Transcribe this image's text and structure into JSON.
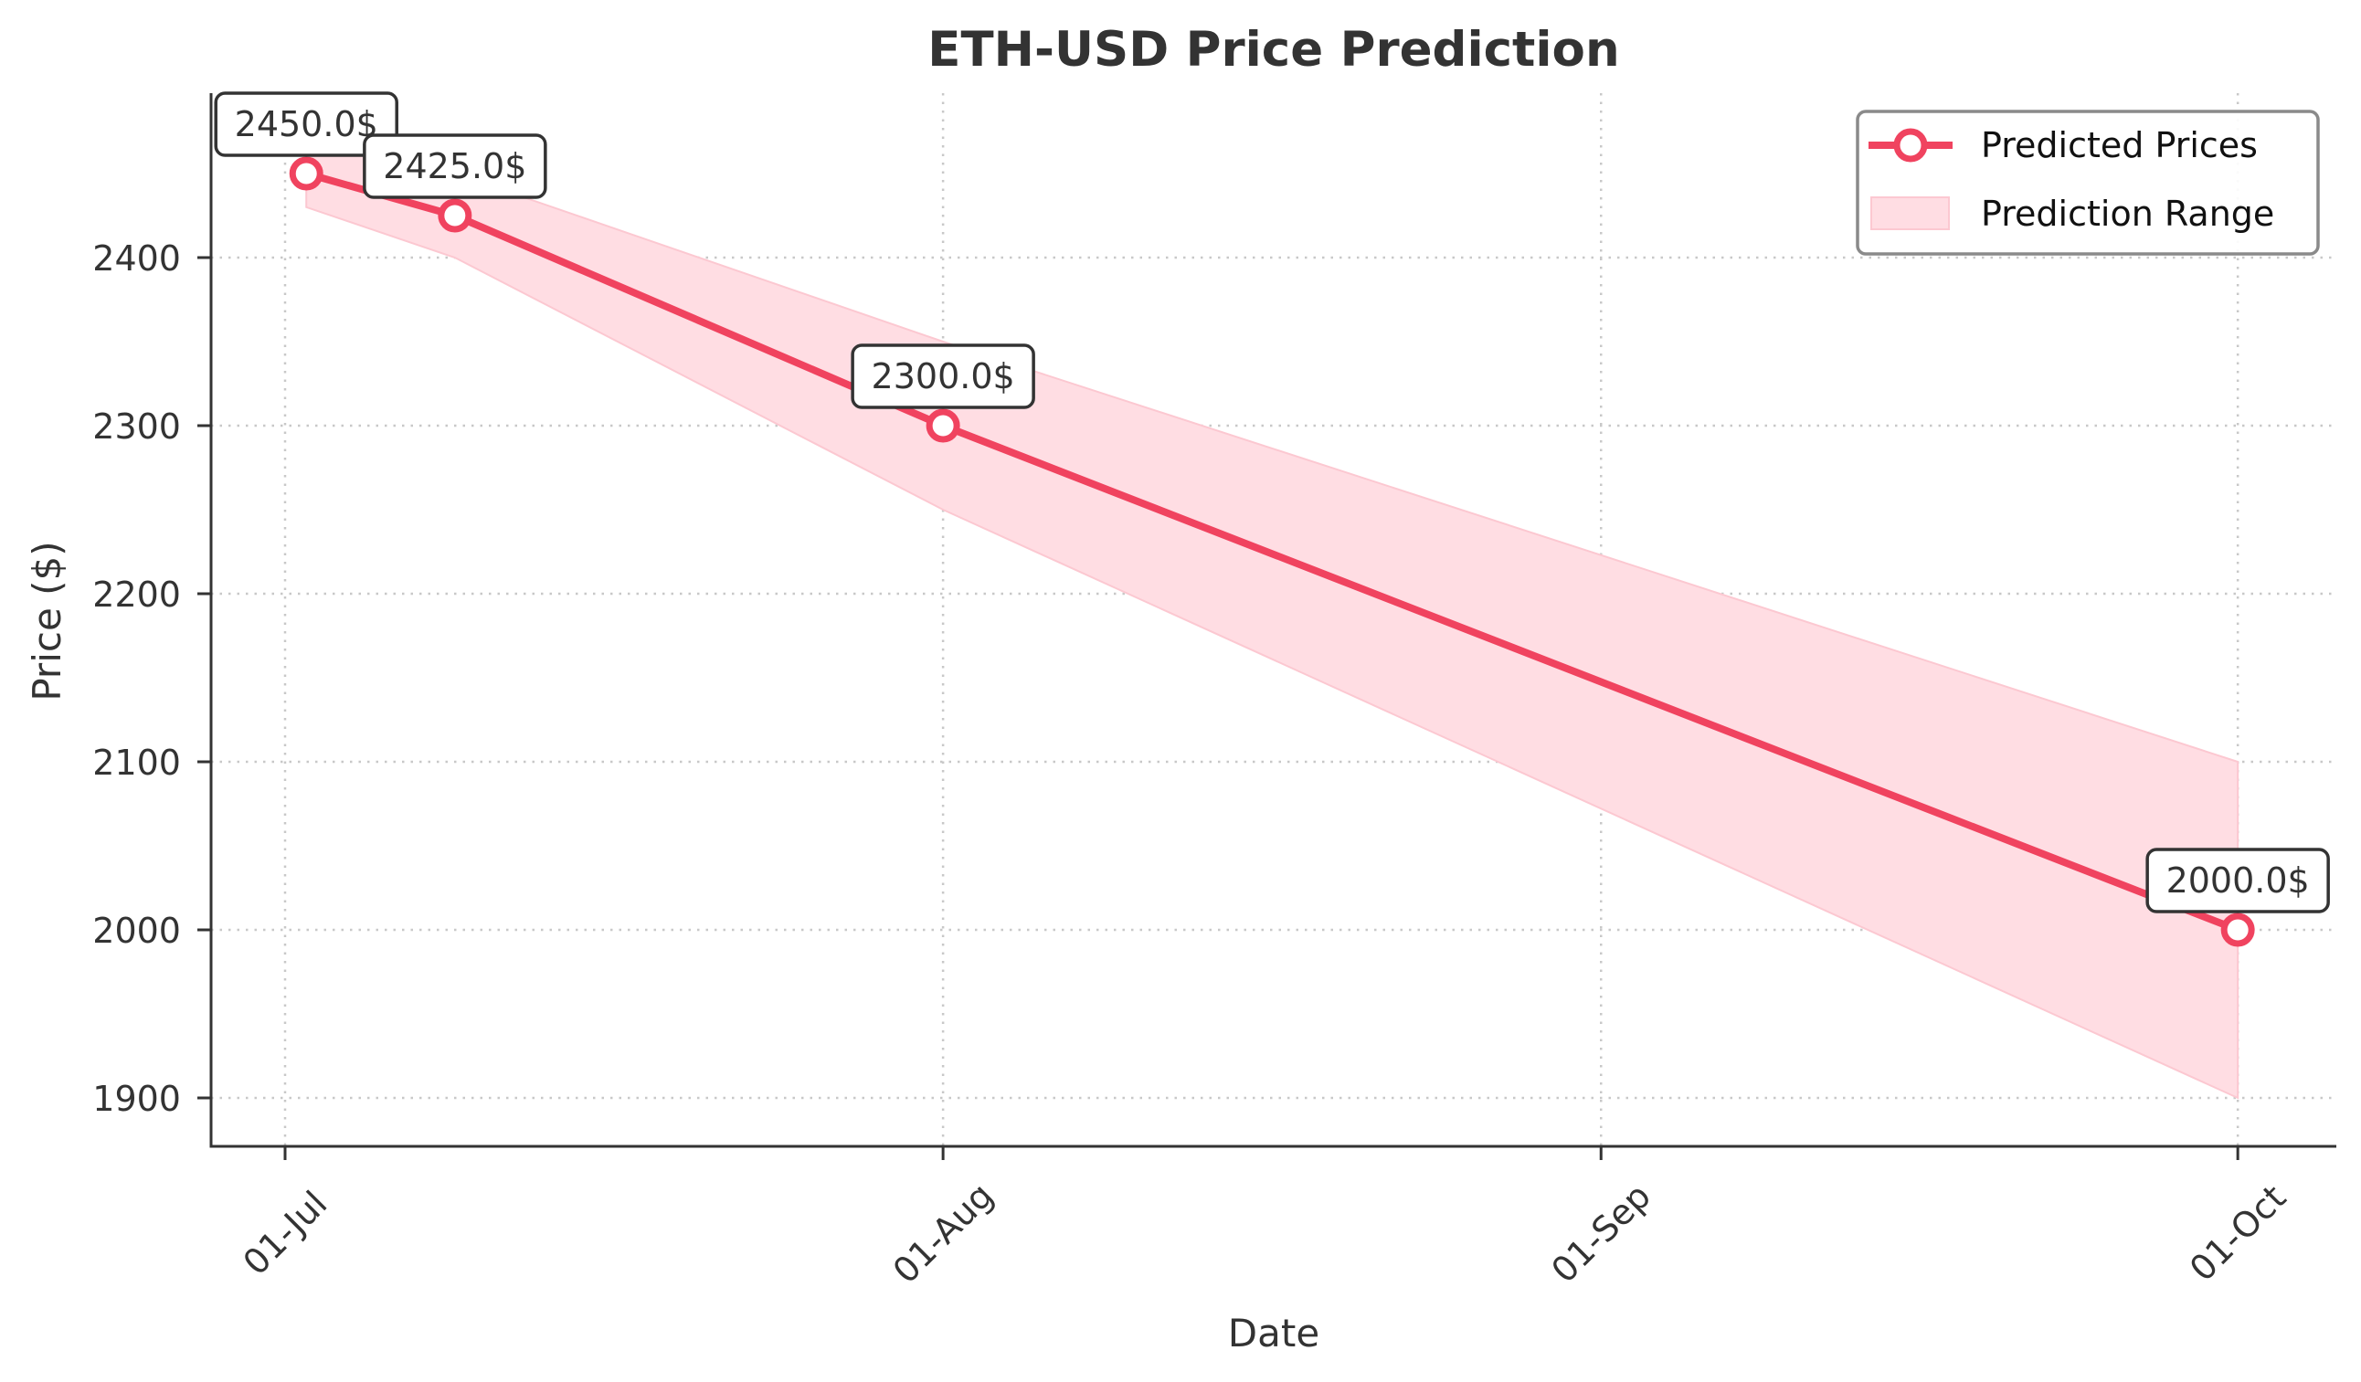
{
  "chart_data": {
    "type": "line",
    "title": "ETH-USD Price Prediction",
    "xlabel": "Date",
    "ylabel": "Price ($)",
    "x_ticks": [
      "01-Jul",
      "01-Aug",
      "01-Sep",
      "01-Oct"
    ],
    "y_ticks": [
      1900,
      2000,
      2100,
      2200,
      2300,
      2400
    ],
    "ylim": [
      1871,
      2498
    ],
    "grid": true,
    "legend_position": "upper right",
    "x": [
      "02-Jul",
      "09-Jul",
      "01-Aug",
      "01-Oct"
    ],
    "series": [
      {
        "name": "Predicted Prices",
        "type": "line",
        "color": "#F0435F",
        "marker": "hollow-circle",
        "values": [
          2450.0,
          2425.0,
          2300.0,
          2000.0
        ]
      },
      {
        "name": "Prediction Range",
        "type": "area",
        "color": "#FFDDE3",
        "lower": [
          2430,
          2400,
          2250,
          1900
        ],
        "upper": [
          2470,
          2450,
          2350,
          2100
        ]
      }
    ],
    "annotations": [
      "2450.0$",
      "2425.0$",
      "2300.0$",
      "2000.0$"
    ]
  },
  "legend": {
    "items": [
      {
        "label": "Predicted Prices"
      },
      {
        "label": "Prediction Range"
      }
    ]
  },
  "colors": {
    "line": "#F0435F",
    "band": "#FFDDE3",
    "band_edge": "#FCC8D1",
    "text": "#333333"
  }
}
